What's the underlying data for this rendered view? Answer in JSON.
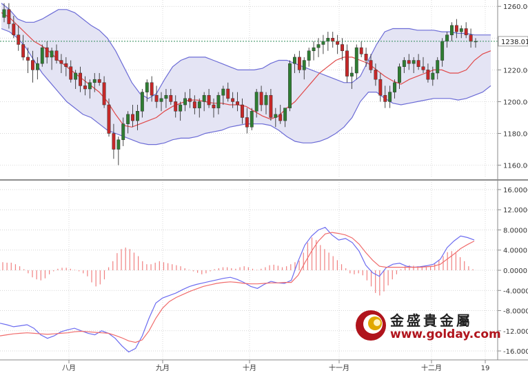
{
  "chart_data": [
    {
      "type": "candlestick",
      "overlays": [
        "bollinger-bands",
        "moving-average"
      ],
      "x_tick_labels": [
        "八月",
        "九月",
        "十月",
        "十一月",
        "十二月",
        "19"
      ],
      "y_tick_labels": [
        "1260.00",
        "1240.00",
        "1220.00",
        "1200.00",
        "1180.00",
        "1160.00"
      ],
      "ylim": [
        1152,
        1264
      ],
      "current_price": "1238.01",
      "grid": true,
      "colors": {
        "up": "#2e7d32",
        "down": "#c62828",
        "band": "#6b6bd6",
        "band_fill": "#e3e3f3",
        "ma": "#e04848"
      },
      "candles": [
        [
          1253,
          1262,
          1250,
          1258
        ],
        [
          1258,
          1262,
          1246,
          1249
        ],
        [
          1249,
          1254,
          1240,
          1242
        ],
        [
          1242,
          1248,
          1232,
          1236
        ],
        [
          1236,
          1242,
          1226,
          1228
        ],
        [
          1228,
          1234,
          1218,
          1226
        ],
        [
          1226,
          1232,
          1212,
          1220
        ],
        [
          1220,
          1228,
          1214,
          1224
        ],
        [
          1224,
          1236,
          1222,
          1234
        ],
        [
          1234,
          1238,
          1224,
          1228
        ],
        [
          1228,
          1234,
          1220,
          1232
        ],
        [
          1232,
          1236,
          1224,
          1226
        ],
        [
          1226,
          1230,
          1218,
          1224
        ],
        [
          1224,
          1228,
          1216,
          1222
        ],
        [
          1222,
          1226,
          1212,
          1214
        ],
        [
          1214,
          1220,
          1208,
          1218
        ],
        [
          1218,
          1222,
          1206,
          1210
        ],
        [
          1210,
          1216,
          1204,
          1208
        ],
        [
          1208,
          1214,
          1202,
          1212
        ],
        [
          1212,
          1218,
          1206,
          1214
        ],
        [
          1214,
          1218,
          1210,
          1212
        ],
        [
          1212,
          1216,
          1196,
          1198
        ],
        [
          1198,
          1202,
          1178,
          1180
        ],
        [
          1180,
          1186,
          1164,
          1170
        ],
        [
          1170,
          1178,
          1160,
          1176
        ],
        [
          1176,
          1190,
          1172,
          1186
        ],
        [
          1186,
          1194,
          1180,
          1192
        ],
        [
          1192,
          1198,
          1184,
          1188
        ],
        [
          1188,
          1198,
          1182,
          1194
        ],
        [
          1194,
          1208,
          1190,
          1206
        ],
        [
          1206,
          1214,
          1200,
          1212
        ],
        [
          1212,
          1216,
          1200,
          1204
        ],
        [
          1204,
          1210,
          1196,
          1200
        ],
        [
          1200,
          1206,
          1194,
          1202
        ],
        [
          1202,
          1208,
          1196,
          1204
        ],
        [
          1204,
          1208,
          1198,
          1200
        ],
        [
          1200,
          1204,
          1190,
          1194
        ],
        [
          1194,
          1200,
          1188,
          1198
        ],
        [
          1198,
          1206,
          1194,
          1202
        ],
        [
          1202,
          1208,
          1196,
          1200
        ],
        [
          1200,
          1204,
          1192,
          1196
        ],
        [
          1196,
          1202,
          1190,
          1200
        ],
        [
          1200,
          1206,
          1194,
          1204
        ],
        [
          1204,
          1208,
          1196,
          1198
        ],
        [
          1198,
          1202,
          1190,
          1196
        ],
        [
          1196,
          1206,
          1192,
          1204
        ],
        [
          1204,
          1210,
          1198,
          1208
        ],
        [
          1208,
          1212,
          1200,
          1202
        ],
        [
          1202,
          1206,
          1196,
          1200
        ],
        [
          1200,
          1206,
          1194,
          1198
        ],
        [
          1198,
          1202,
          1186,
          1190
        ],
        [
          1190,
          1196,
          1180,
          1184
        ],
        [
          1184,
          1196,
          1182,
          1194
        ],
        [
          1194,
          1208,
          1190,
          1206
        ],
        [
          1206,
          1210,
          1194,
          1198
        ],
        [
          1198,
          1206,
          1192,
          1204
        ],
        [
          1204,
          1208,
          1188,
          1190
        ],
        [
          1190,
          1196,
          1184,
          1192
        ],
        [
          1192,
          1198,
          1186,
          1188
        ],
        [
          1188,
          1196,
          1184,
          1196
        ],
        [
          1196,
          1226,
          1194,
          1224
        ],
        [
          1224,
          1230,
          1218,
          1228
        ],
        [
          1228,
          1232,
          1218,
          1220
        ],
        [
          1220,
          1228,
          1214,
          1226
        ],
        [
          1226,
          1234,
          1222,
          1232
        ],
        [
          1232,
          1238,
          1226,
          1234
        ],
        [
          1234,
          1240,
          1228,
          1236
        ],
        [
          1236,
          1242,
          1230,
          1238
        ],
        [
          1238,
          1244,
          1232,
          1240
        ],
        [
          1240,
          1244,
          1234,
          1238
        ],
        [
          1238,
          1242,
          1230,
          1236
        ],
        [
          1236,
          1240,
          1226,
          1232
        ],
        [
          1232,
          1236,
          1212,
          1216
        ],
        [
          1216,
          1222,
          1208,
          1218
        ],
        [
          1218,
          1236,
          1214,
          1234
        ],
        [
          1234,
          1238,
          1228,
          1230
        ],
        [
          1230,
          1234,
          1222,
          1226
        ],
        [
          1226,
          1230,
          1218,
          1220
        ],
        [
          1220,
          1224,
          1210,
          1214
        ],
        [
          1214,
          1218,
          1200,
          1204
        ],
        [
          1204,
          1210,
          1196,
          1200
        ],
        [
          1200,
          1210,
          1196,
          1206
        ],
        [
          1206,
          1214,
          1202,
          1212
        ],
        [
          1212,
          1224,
          1208,
          1222
        ],
        [
          1222,
          1228,
          1218,
          1226
        ],
        [
          1226,
          1230,
          1220,
          1224
        ],
        [
          1224,
          1228,
          1218,
          1226
        ],
        [
          1226,
          1230,
          1220,
          1222
        ],
        [
          1222,
          1228,
          1218,
          1220
        ],
        [
          1220,
          1224,
          1212,
          1214
        ],
        [
          1214,
          1222,
          1210,
          1218
        ],
        [
          1218,
          1228,
          1214,
          1226
        ],
        [
          1226,
          1240,
          1222,
          1238
        ],
        [
          1238,
          1244,
          1234,
          1242
        ],
        [
          1242,
          1250,
          1238,
          1248
        ],
        [
          1248,
          1252,
          1240,
          1244
        ],
        [
          1244,
          1248,
          1240,
          1246
        ],
        [
          1246,
          1250,
          1240,
          1242
        ],
        [
          1242,
          1246,
          1234,
          1238
        ],
        [
          1238,
          1240,
          1234,
          1238
        ]
      ],
      "upper_band": [
        1262,
        1258,
        1252,
        1250,
        1250,
        1252,
        1255,
        1258,
        1258,
        1256,
        1252,
        1248,
        1245,
        1240,
        1232,
        1222,
        1212,
        1205,
        1202,
        1205,
        1214,
        1222,
        1226,
        1228,
        1228,
        1228,
        1226,
        1224,
        1222,
        1220,
        1220,
        1220,
        1221,
        1224,
        1226,
        1226,
        1224,
        1222,
        1220,
        1218,
        1216,
        1214,
        1212,
        1212,
        1216,
        1226,
        1236,
        1244,
        1246,
        1246,
        1246,
        1245,
        1245,
        1245,
        1244,
        1244,
        1243,
        1243,
        1242,
        1242,
        1242
      ],
      "lower_band": [
        1246,
        1244,
        1240,
        1234,
        1226,
        1218,
        1212,
        1206,
        1200,
        1196,
        1192,
        1190,
        1186,
        1182,
        1180,
        1178,
        1176,
        1174,
        1173,
        1173,
        1174,
        1176,
        1177,
        1177,
        1178,
        1180,
        1181,
        1182,
        1184,
        1185,
        1186,
        1186,
        1186,
        1185,
        1182,
        1178,
        1175,
        1174,
        1174,
        1175,
        1177,
        1180,
        1184,
        1190,
        1200,
        1206,
        1206,
        1202,
        1199,
        1198,
        1199,
        1200,
        1201,
        1202,
        1202,
        1202,
        1201,
        1202,
        1204,
        1206,
        1210
      ],
      "middle_ma": [
        1256,
        1253,
        1248,
        1243,
        1238,
        1235,
        1231,
        1226,
        1222,
        1218,
        1214,
        1210,
        1206,
        1200,
        1192,
        1185,
        1184,
        1186,
        1188,
        1190,
        1194,
        1197,
        1199,
        1201,
        1201,
        1200,
        1199,
        1199,
        1198,
        1198,
        1197,
        1194,
        1191,
        1189,
        1191,
        1196,
        1200,
        1206,
        1212,
        1218,
        1222,
        1226,
        1228,
        1228,
        1226,
        1224,
        1220,
        1216,
        1213,
        1211,
        1214,
        1216,
        1218,
        1220,
        1220,
        1218,
        1218,
        1220,
        1226,
        1230,
        1232
      ]
    },
    {
      "type": "macd",
      "y_tick_labels": [
        "16.0000",
        "12.0000",
        "8.0000",
        "4.0000",
        "0.0000",
        "-4.0000",
        "-8.0000",
        "-12.0000",
        "-16.0000"
      ],
      "ylim": [
        -17.5,
        17.5
      ],
      "colors": {
        "macd": "#6b6bf0",
        "signal": "#f06b6b",
        "histogram": "#f08080"
      },
      "macd_line": [
        -10.5,
        -10.8,
        -11.2,
        -11.0,
        -10.8,
        -11.5,
        -12.8,
        -13.5,
        -13.0,
        -12.2,
        -11.8,
        -11.5,
        -12.0,
        -12.5,
        -12.8,
        -12.0,
        -12.5,
        -13.5,
        -15.0,
        -16.2,
        -15.5,
        -13.0,
        -9.5,
        -6.5,
        -5.5,
        -5.0,
        -4.5,
        -3.8,
        -3.2,
        -2.8,
        -2.5,
        -2.2,
        -1.9,
        -1.6,
        -1.4,
        -1.8,
        -2.4,
        -3.2,
        -3.6,
        -2.8,
        -2.2,
        -2.5,
        -2.6,
        -2.0,
        1.8,
        5.0,
        6.8,
        8.0,
        8.5,
        7.0,
        6.0,
        6.3,
        5.5,
        3.8,
        1.0,
        -0.5,
        -1.2,
        0.5,
        1.2,
        1.4,
        0.8,
        0.6,
        0.7,
        0.9,
        1.2,
        2.2,
        4.5,
        5.8,
        6.8,
        6.5,
        6.0
      ],
      "signal_line": [
        -13.0,
        -12.8,
        -12.6,
        -12.5,
        -12.4,
        -12.5,
        -12.6,
        -12.7,
        -12.6,
        -12.5,
        -12.4,
        -12.2,
        -12.1,
        -12.2,
        -12.3,
        -12.4,
        -12.5,
        -12.9,
        -13.4,
        -14.0,
        -14.3,
        -13.8,
        -12.0,
        -9.5,
        -7.5,
        -6.2,
        -5.4,
        -4.8,
        -4.2,
        -3.7,
        -3.2,
        -2.9,
        -2.6,
        -2.4,
        -2.3,
        -2.4,
        -2.6,
        -2.7,
        -2.7,
        -2.6,
        -2.5,
        -2.5,
        -2.4,
        -2.4,
        -1.0,
        1.5,
        3.8,
        5.8,
        7.2,
        7.5,
        7.3,
        7.0,
        6.4,
        5.2,
        3.5,
        2.0,
        0.8,
        0.6,
        0.6,
        0.6,
        0.6,
        0.6,
        0.6,
        0.7,
        0.8,
        1.2,
        2.2,
        3.2,
        4.3,
        5.1,
        5.8
      ],
      "histogram": [
        1.6,
        1.5,
        1.5,
        1.2,
        0.8,
        0.2,
        -0.6,
        -1.4,
        -1.8,
        -2.0,
        -1.6,
        -0.8,
        -0.2,
        0.3,
        0.5,
        0.5,
        0.3,
        0.1,
        -0.2,
        -0.6,
        -1.2,
        -2.4,
        -3.2,
        -2.8,
        -1.8,
        0.6,
        1.8,
        3.4,
        4.2,
        4.5,
        4.2,
        3.5,
        2.8,
        1.8,
        1.2,
        1.2,
        1.5,
        1.8,
        1.6,
        1.4,
        1.2,
        1.0,
        0.8,
        0.4,
        0.1,
        -0.2,
        -0.5,
        -0.8,
        -0.6,
        -0.2,
        0.2,
        0.4,
        0.6,
        0.6,
        0.4,
        0.3,
        0.6,
        0.8,
        0.6,
        0.3,
        0.1,
        0.3,
        0.6,
        1.0,
        1.1,
        0.9,
        0.6,
        0.8,
        1.2,
        1.6,
        1.9,
        3.5,
        5.5,
        6.5,
        6.0,
        5.0,
        4.2,
        3.5,
        2.8,
        2.0,
        1.2,
        0.4,
        -0.6,
        -0.8,
        -0.6,
        -1.0,
        -2.0,
        -3.2,
        -4.5,
        -5.0,
        -4.2,
        -3.0,
        -1.8,
        -0.8,
        0.2,
        0.8,
        1.0,
        0.9,
        0.8,
        0.7,
        0.6,
        0.8,
        1.4,
        2.0,
        2.8,
        3.6,
        3.8,
        3.4,
        2.6,
        1.8,
        0.8,
        0.2
      ]
    }
  ],
  "branding": {
    "name_cn": "金盛貴金屬",
    "url": "www.golday.com"
  }
}
